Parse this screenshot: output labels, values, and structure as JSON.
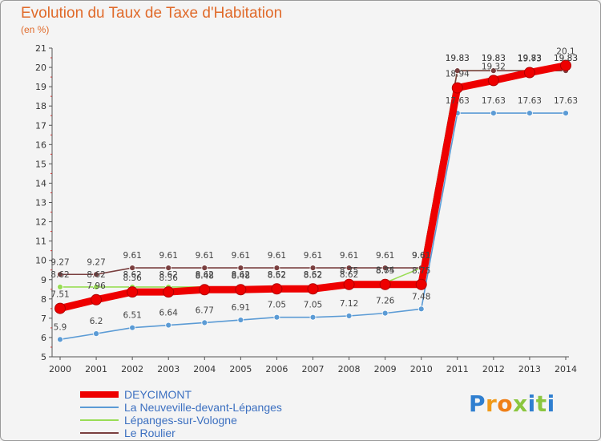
{
  "title": "Evolution du Taux de Taxe d'Habitation",
  "unit": "(en %)",
  "logo": {
    "letters": [
      "P",
      "r",
      "o",
      "x",
      "i",
      "t",
      "i"
    ],
    "colors": [
      "#2f7fd0",
      "#f09a1a",
      "#ef7f17",
      "#8bc63f",
      "#2f7fd0",
      "#8bc63f",
      "#2f7fd0"
    ]
  },
  "chart_data": {
    "type": "line",
    "title": "Evolution du Taux de Taxe d'Habitation",
    "ylabel": "(en %)",
    "xlabel": "",
    "x": [
      "2000",
      "2001",
      "2002",
      "2003",
      "2004",
      "2005",
      "2006",
      "2007",
      "2008",
      "2009",
      "2010",
      "2011",
      "2012",
      "2013",
      "2014"
    ],
    "ylim": [
      5,
      21
    ],
    "yticks": [
      "5",
      "6",
      "7",
      "8",
      "9",
      "10",
      "11",
      "12",
      "13",
      "14",
      "15",
      "16",
      "17",
      "18",
      "19",
      "20",
      "21"
    ],
    "grid": false,
    "legend": "bottom-left",
    "series": [
      {
        "name": "DEYCIMONT",
        "color": "#ee0000",
        "values": [
          7.51,
          7.96,
          8.36,
          8.36,
          8.48,
          8.48,
          8.52,
          8.52,
          8.75,
          8.75,
          8.75,
          18.94,
          19.32,
          19.73,
          20.1
        ],
        "labels": [
          "7.51",
          "7.96",
          "8.36",
          "8.36",
          "8.48",
          "8.48",
          "8.52",
          "8.52",
          "8.75",
          "8.75",
          "8.75",
          "18.94",
          "19.32",
          "19.73",
          "20.1"
        ]
      },
      {
        "name": "La Neuveville-devant-Lépanges",
        "color": "#5b9bd5",
        "values": [
          5.9,
          6.2,
          6.51,
          6.64,
          6.77,
          6.91,
          7.05,
          7.05,
          7.12,
          7.26,
          7.48,
          17.63,
          17.63,
          17.63,
          17.63
        ],
        "labels": [
          "5.9",
          "6.2",
          "6.51",
          "6.64",
          "6.77",
          "6.91",
          "7.05",
          "7.05",
          "7.12",
          "7.26",
          "7.48",
          "17.63",
          "17.63",
          "17.63",
          "17.63"
        ]
      },
      {
        "name": "Lépanges-sur-Vologne",
        "color": "#99dd55",
        "values": [
          8.62,
          8.62,
          8.62,
          8.62,
          8.62,
          8.62,
          8.62,
          8.62,
          8.62,
          8.84,
          9.61,
          19.83,
          19.83,
          19.83,
          19.83
        ],
        "labels": [
          "8.62",
          "8.62",
          "8.62",
          "8.62",
          "8.62",
          "8.62",
          "8.62",
          "8.62",
          "8.62",
          "8.84",
          "9.61",
          "19.83",
          "19.83",
          "19.83",
          "19.83"
        ]
      },
      {
        "name": "Le Roulier",
        "color": "#7a3f3f",
        "values": [
          9.27,
          9.27,
          9.61,
          9.61,
          9.61,
          9.61,
          9.61,
          9.61,
          9.61,
          9.61,
          9.61,
          19.83,
          19.83,
          19.83,
          19.83
        ],
        "labels": [
          "9.27",
          "9.27",
          "9.61",
          "9.61",
          "9.61",
          "9.61",
          "9.61",
          "9.61",
          "9.61",
          "9.61",
          "9.61",
          "19.83",
          "19.83",
          "19.83",
          "19.83"
        ]
      }
    ]
  }
}
